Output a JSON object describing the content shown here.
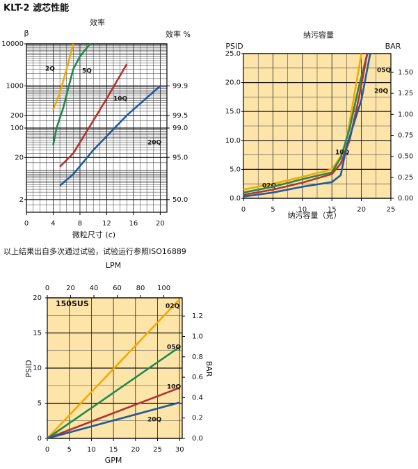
{
  "title": "KLT-2 滤芯性能",
  "note": "以上结果出自多次通过试验，试验运行参照ISO16889",
  "chart_data": [
    {
      "type": "line",
      "title": "效率",
      "ylabel": "β",
      "y2label": "效率 %",
      "xlabel": "微粒尺寸 (c)",
      "xlim": [
        0,
        21
      ],
      "xticks": [
        0,
        4,
        8,
        12,
        16,
        20
      ],
      "ylim": [
        1,
        10000
      ],
      "yscale": "log",
      "yticks": [
        10000,
        {
          "value": 1000,
          "color": "#d0202a"
        },
        {
          "value": 200,
          "color": "#d0202a"
        },
        100,
        20,
        2
      ],
      "y2lim": [
        0,
        99.99
      ],
      "y2scale": "efficiency",
      "y2ticks": [
        {
          "value": 99.9,
          "color": "#d0202a"
        },
        {
          "value": 99.5,
          "color": "#d0202a"
        },
        {
          "value": 99,
          "label": "99.0"
        },
        {
          "value": 95,
          "label": "95.0"
        },
        {
          "value": 50,
          "label": "50.0"
        }
      ],
      "grid": true,
      "background": "#ffffff",
      "series": [
        {
          "name": "2Q",
          "color": "#f5a800",
          "x": [
            4,
            5,
            6,
            7
          ],
          "values": [
            270,
            700,
            2500,
            10000
          ]
        },
        {
          "name": "5Q",
          "color": "#1e8a4c",
          "x": [
            4,
            4.5,
            5.5,
            7,
            8,
            9.5
          ],
          "values": [
            40,
            100,
            300,
            2500,
            5000,
            10000
          ]
        },
        {
          "name": "10Q",
          "color": "#b5332e",
          "x": [
            5,
            7,
            10,
            12,
            15
          ],
          "values": [
            12,
            25,
            150,
            500,
            3300
          ]
        },
        {
          "name": "20Q",
          "color": "#1f5a9e",
          "x": [
            5,
            7,
            10,
            15,
            20
          ],
          "values": [
            4.3,
            8,
            30,
            200,
            1000
          ]
        }
      ]
    },
    {
      "type": "line",
      "title": "纳污容量",
      "ylabel": "PSID",
      "y2label": "BAR",
      "xlabel": "纳污容量（克）",
      "xlim": [
        0,
        25
      ],
      "xticks": [
        0,
        5,
        10,
        15,
        20,
        25
      ],
      "ylim": [
        0,
        25
      ],
      "yticks": [
        {
          "value": 0,
          "label": "0.0"
        },
        {
          "value": 5,
          "label": "5.0"
        },
        {
          "value": 10,
          "label": "10.0"
        },
        {
          "value": 15,
          "label": "15.0"
        },
        {
          "value": 20,
          "label": "20.0"
        },
        {
          "value": 25,
          "label": "25.0"
        }
      ],
      "y2lim": [
        0,
        1.724
      ],
      "y2ticks": [
        {
          "value": 0,
          "label": "0.00"
        },
        {
          "value": 0.25,
          "label": "0.25"
        },
        {
          "value": 0.5,
          "label": "0.50"
        },
        {
          "value": 0.75,
          "label": "0.75"
        },
        {
          "value": 1,
          "label": "1.00"
        },
        {
          "value": 1.25,
          "label": "1.25"
        },
        {
          "value": 1.5,
          "label": "1.50"
        }
      ],
      "grid": true,
      "background": "#fde4a8",
      "series": [
        {
          "name": "02Q",
          "color": "#f5a800",
          "x": [
            0,
            5,
            10,
            15,
            17,
            18,
            19,
            20
          ],
          "values": [
            1.5,
            2.5,
            3.7,
            5,
            8,
            13,
            19,
            25
          ]
        },
        {
          "name": "05Q",
          "color": "#1e8a4c",
          "x": [
            0,
            5,
            10,
            15,
            16.5,
            18,
            19.5,
            21
          ],
          "values": [
            1,
            2,
            3.3,
            4.5,
            7,
            12,
            19,
            25
          ]
        },
        {
          "name": "10Q",
          "color": "#b5332e",
          "x": [
            0,
            5,
            10,
            15,
            16.5,
            18,
            19.5,
            21
          ],
          "values": [
            0.6,
            1.5,
            2.7,
            4.2,
            6,
            10,
            17,
            25
          ]
        },
        {
          "name": "20Q",
          "color": "#1f5a9e",
          "x": [
            0,
            5,
            10,
            15,
            16.5,
            17.5,
            20,
            21.5
          ],
          "values": [
            0.3,
            1,
            2,
            2.8,
            4,
            9,
            17,
            25
          ]
        }
      ]
    },
    {
      "type": "line",
      "ylabel": "PSID",
      "y2label": "BAR",
      "xlabel": "GPM",
      "x2label": "LPM",
      "annotation": "150SUS",
      "xlim": [
        0,
        30.6
      ],
      "xticks": [
        0,
        5,
        10,
        15,
        20,
        25,
        30
      ],
      "x2lim": [
        0,
        115.8
      ],
      "x2ticks": [
        0,
        20,
        40,
        60,
        80,
        100
      ],
      "ylim": [
        0,
        20
      ],
      "yticks": [
        0,
        5,
        10,
        15,
        20
      ],
      "y2lim": [
        0,
        1.379
      ],
      "y2ticks": [
        {
          "value": 0,
          "label": "0.0"
        },
        {
          "value": 0.2,
          "label": "0.2"
        },
        {
          "value": 0.4,
          "label": "0.4"
        },
        {
          "value": 0.6,
          "label": "0.6"
        },
        {
          "value": 0.8,
          "label": "0.8"
        },
        {
          "value": 1,
          "label": "1.0"
        },
        {
          "value": 1.2,
          "label": "1.2"
        }
      ],
      "grid": true,
      "background": "#fde4a8",
      "series": [
        {
          "name": "02Q",
          "color": "#f5a800",
          "x": [
            0,
            30
          ],
          "values": [
            0,
            19.8
          ]
        },
        {
          "name": "05Q",
          "color": "#1e8a4c",
          "x": [
            0,
            30
          ],
          "values": [
            0,
            13
          ]
        },
        {
          "name": "10Q",
          "color": "#b5332e",
          "x": [
            0,
            30
          ],
          "values": [
            0,
            7.2
          ]
        },
        {
          "name": "20Q",
          "color": "#1f5a9e",
          "x": [
            0,
            30
          ],
          "values": [
            0,
            5.1
          ]
        }
      ]
    }
  ]
}
